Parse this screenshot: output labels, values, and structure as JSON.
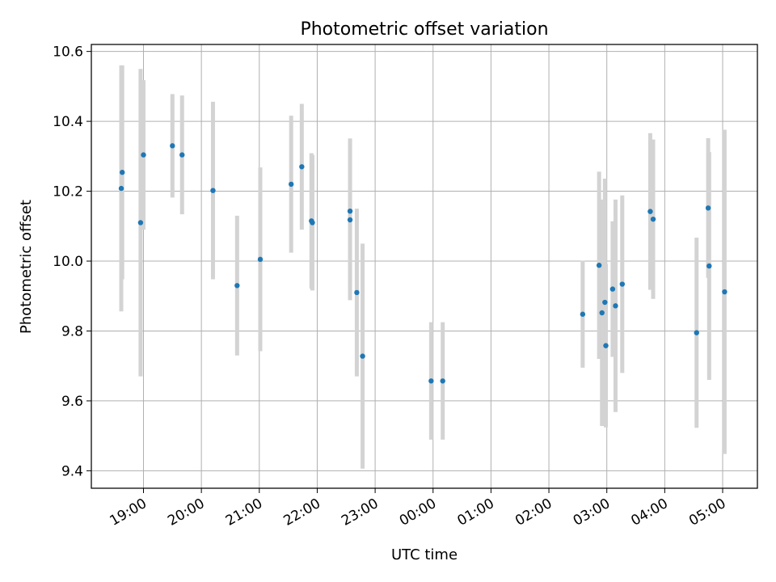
{
  "chart_data": {
    "type": "scatter",
    "title": "Photometric offset variation",
    "xlabel": "UTC time",
    "ylabel": "Photometric offset",
    "x_ticks": [
      "19:00",
      "20:00",
      "21:00",
      "22:00",
      "23:00",
      "00:00",
      "01:00",
      "02:00",
      "03:00",
      "04:00",
      "05:00"
    ],
    "y_ticks": [
      "9.4",
      "9.6",
      "9.8",
      "10.0",
      "10.2",
      "10.4",
      "10.6"
    ],
    "ylim": [
      9.35,
      10.62
    ],
    "xlim": [
      "18:06",
      "05:36"
    ],
    "grid": true,
    "legend": "none",
    "colors": {
      "point": "#1f77b4",
      "errorbar": "#d3d3d3",
      "grid": "#b0b0b0"
    },
    "points": [
      {
        "x": "18:37",
        "y": 10.208,
        "err": 0.352
      },
      {
        "x": "18:38",
        "y": 10.254,
        "err": 0.306
      },
      {
        "x": "18:57",
        "y": 10.11,
        "err": 0.44
      },
      {
        "x": "19:00",
        "y": 10.304,
        "err": 0.214
      },
      {
        "x": "19:30",
        "y": 10.33,
        "err": 0.148
      },
      {
        "x": "19:40",
        "y": 10.304,
        "err": 0.17
      },
      {
        "x": "20:12",
        "y": 10.202,
        "err": 0.254
      },
      {
        "x": "20:37",
        "y": 9.93,
        "err": 0.2
      },
      {
        "x": "21:01",
        "y": 10.005,
        "err": 0.263
      },
      {
        "x": "21:33",
        "y": 10.22,
        "err": 0.196
      },
      {
        "x": "21:44",
        "y": 10.27,
        "err": 0.18
      },
      {
        "x": "21:54",
        "y": 10.115,
        "err": 0.194
      },
      {
        "x": "21:55",
        "y": 10.11,
        "err": 0.194
      },
      {
        "x": "22:34",
        "y": 10.143,
        "err": 0.208
      },
      {
        "x": "22:34",
        "y": 10.118,
        "err": 0.23
      },
      {
        "x": "22:41",
        "y": 9.91,
        "err": 0.24
      },
      {
        "x": "22:47",
        "y": 9.728,
        "err": 0.322
      },
      {
        "x": "23:58",
        "y": 9.657,
        "err": 0.168
      },
      {
        "x": "00:10",
        "y": 9.657,
        "err": 0.168
      },
      {
        "x": "02:35",
        "y": 9.848,
        "err": 0.153
      },
      {
        "x": "02:52",
        "y": 9.988,
        "err": 0.268
      },
      {
        "x": "02:55",
        "y": 9.852,
        "err": 0.324
      },
      {
        "x": "02:58",
        "y": 9.882,
        "err": 0.354
      },
      {
        "x": "02:59",
        "y": 9.758,
        "err": 0.234
      },
      {
        "x": "03:06",
        "y": 9.92,
        "err": 0.194
      },
      {
        "x": "03:09",
        "y": 9.872,
        "err": 0.304
      },
      {
        "x": "03:16",
        "y": 9.934,
        "err": 0.254
      },
      {
        "x": "03:45",
        "y": 10.142,
        "err": 0.224
      },
      {
        "x": "03:48",
        "y": 10.12,
        "err": 0.228
      },
      {
        "x": "04:33",
        "y": 9.795,
        "err": 0.272
      },
      {
        "x": "04:45",
        "y": 10.152,
        "err": 0.2
      },
      {
        "x": "04:46",
        "y": 9.986,
        "err": 0.326
      },
      {
        "x": "05:02",
        "y": 9.912,
        "err": 0.464
      }
    ]
  }
}
